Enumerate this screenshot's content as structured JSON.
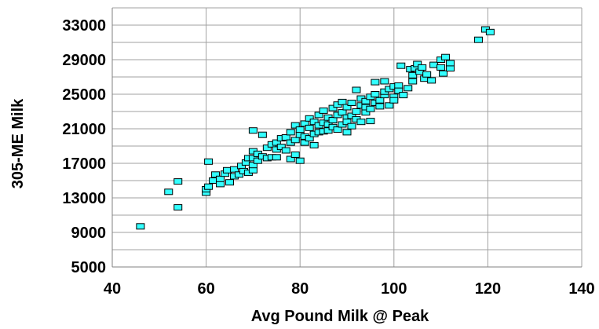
{
  "chart_data": {
    "type": "scatter",
    "xlabel": "Avg Pound Milk @ Peak",
    "ylabel": "305-ME Milk",
    "xlim": [
      40,
      140
    ],
    "ylim": [
      5000,
      35000
    ],
    "x_ticks": [
      40,
      60,
      80,
      100,
      120,
      140
    ],
    "y_ticks": [
      5000,
      9000,
      13000,
      17000,
      21000,
      25000,
      29000,
      33000
    ],
    "grid": true,
    "legend": "none",
    "marker": {
      "shape": "square",
      "fill": "#33FFFF",
      "stroke": "#000000"
    },
    "points": [
      [
        46,
        9700
      ],
      [
        52,
        13700
      ],
      [
        54,
        14900
      ],
      [
        54,
        11900
      ],
      [
        60,
        13600
      ],
      [
        60,
        14000
      ],
      [
        60.5,
        14300
      ],
      [
        60.5,
        17200
      ],
      [
        61.5,
        15000
      ],
      [
        62,
        15700
      ],
      [
        63,
        14600
      ],
      [
        63,
        15200
      ],
      [
        64,
        15800
      ],
      [
        64.5,
        16200
      ],
      [
        65,
        14800
      ],
      [
        66,
        16300
      ],
      [
        66,
        15500
      ],
      [
        67,
        15700
      ],
      [
        67.5,
        16700
      ],
      [
        68,
        16100
      ],
      [
        68.5,
        17100
      ],
      [
        69,
        15900
      ],
      [
        69,
        17600
      ],
      [
        70,
        16200
      ],
      [
        70,
        16800
      ],
      [
        70,
        17600
      ],
      [
        70,
        18400
      ],
      [
        70,
        20800
      ],
      [
        71,
        18100
      ],
      [
        71,
        17300
      ],
      [
        72,
        17800
      ],
      [
        72,
        20300
      ],
      [
        73,
        18800
      ],
      [
        73,
        17600
      ],
      [
        74,
        17700
      ],
      [
        74,
        19200
      ],
      [
        75,
        18600
      ],
      [
        75,
        17700
      ],
      [
        75,
        19400
      ],
      [
        76,
        18900
      ],
      [
        76,
        19900
      ],
      [
        77,
        20000
      ],
      [
        77,
        18500
      ],
      [
        78,
        17500
      ],
      [
        78,
        19400
      ],
      [
        78,
        20600
      ],
      [
        79,
        18000
      ],
      [
        79,
        19700
      ],
      [
        79,
        21400
      ],
      [
        80,
        17300
      ],
      [
        80,
        20300
      ],
      [
        80,
        20900
      ],
      [
        81,
        19400
      ],
      [
        81,
        21600
      ],
      [
        81,
        20100
      ],
      [
        82,
        21100
      ],
      [
        82,
        19900
      ],
      [
        82,
        22200
      ],
      [
        83,
        20400
      ],
      [
        83,
        21800
      ],
      [
        83,
        19100
      ],
      [
        84,
        21400
      ],
      [
        84,
        22600
      ],
      [
        84,
        20600
      ],
      [
        85,
        21700
      ],
      [
        85,
        23100
      ],
      [
        85,
        20700
      ],
      [
        86,
        22300
      ],
      [
        86,
        20800
      ],
      [
        86,
        21500
      ],
      [
        87,
        22000
      ],
      [
        87,
        23400
      ],
      [
        87,
        21200
      ],
      [
        88,
        22600
      ],
      [
        88,
        20900
      ],
      [
        88,
        23800
      ],
      [
        89,
        21500
      ],
      [
        89,
        22900
      ],
      [
        89,
        24100
      ],
      [
        90,
        20600
      ],
      [
        90,
        22300
      ],
      [
        90,
        23500
      ],
      [
        90,
        21800
      ],
      [
        91,
        22500
      ],
      [
        91,
        24000
      ],
      [
        91,
        21300
      ],
      [
        92,
        23000
      ],
      [
        92,
        25500
      ],
      [
        92,
        22100
      ],
      [
        93,
        23700
      ],
      [
        93,
        21800
      ],
      [
        93,
        24500
      ],
      [
        94,
        22900
      ],
      [
        94,
        23500
      ],
      [
        94,
        24200
      ],
      [
        95,
        21900
      ],
      [
        95,
        23300
      ],
      [
        95,
        24700
      ],
      [
        96,
        24000
      ],
      [
        96,
        26400
      ],
      [
        96,
        25000
      ],
      [
        97,
        24300
      ],
      [
        97,
        23600
      ],
      [
        98,
        24900
      ],
      [
        98,
        25300
      ],
      [
        98,
        26500
      ],
      [
        99,
        23700
      ],
      [
        99,
        25600
      ],
      [
        100,
        24700
      ],
      [
        100,
        25900
      ],
      [
        100,
        24300
      ],
      [
        101,
        26000
      ],
      [
        101,
        25400
      ],
      [
        101.5,
        28300
      ],
      [
        102,
        24900
      ],
      [
        103,
        25700
      ],
      [
        103.5,
        27900
      ],
      [
        104,
        26500
      ],
      [
        104,
        27200
      ],
      [
        104.5,
        28000
      ],
      [
        105,
        28500
      ],
      [
        105.5,
        27600
      ],
      [
        106,
        28100
      ],
      [
        106.5,
        26800
      ],
      [
        107,
        27300
      ],
      [
        108,
        26600
      ],
      [
        108.5,
        28400
      ],
      [
        110,
        29000
      ],
      [
        110,
        28100
      ],
      [
        110.5,
        27400
      ],
      [
        111,
        29300
      ],
      [
        112,
        28000
      ],
      [
        112,
        28600
      ],
      [
        118,
        31300
      ],
      [
        119.5,
        32500
      ],
      [
        120.5,
        32200
      ]
    ]
  }
}
